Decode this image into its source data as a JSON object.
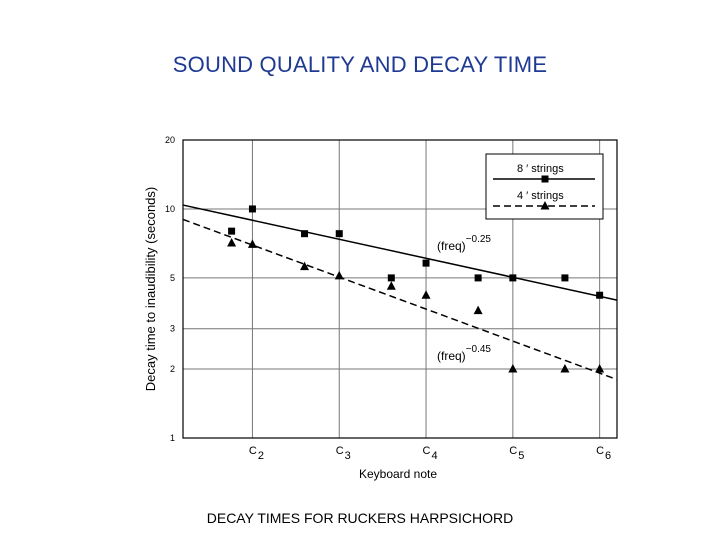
{
  "slide": {
    "title": "SOUND QUALITY AND DECAY TIME",
    "caption": "DECAY TIMES FOR RUCKERS HARPSICHORD"
  },
  "chart_data": {
    "type": "scatter",
    "title": "",
    "xlabel": "Keyboard note",
    "ylabel": "Decay time to inaudibility (seconds)",
    "yscale": "log",
    "ylim": [
      1,
      20
    ],
    "xlim": [
      0.5,
      13
    ],
    "y_ticks": [
      1,
      2,
      3,
      5,
      10,
      20
    ],
    "y_tick_labels": [
      "1",
      "2",
      "3",
      "5",
      "10",
      "20"
    ],
    "x_ticks": [
      {
        "x": 2.5,
        "note": "C",
        "octave": "2"
      },
      {
        "x": 5,
        "note": "C",
        "octave": "3"
      },
      {
        "x": 7.5,
        "note": "C",
        "octave": "4"
      },
      {
        "x": 10,
        "note": "C",
        "octave": "5"
      },
      {
        "x": 12.5,
        "note": "C",
        "octave": "6"
      }
    ],
    "grid": true,
    "legend_position": "top-right",
    "series": [
      {
        "name": "8 ′ strings",
        "marker": "square",
        "line": "solid",
        "points": [
          {
            "x": 1.9,
            "y": 8.0
          },
          {
            "x": 2.5,
            "y": 10.0
          },
          {
            "x": 4.0,
            "y": 7.8
          },
          {
            "x": 5.0,
            "y": 7.8
          },
          {
            "x": 6.5,
            "y": 5.0
          },
          {
            "x": 7.5,
            "y": 5.8
          },
          {
            "x": 9.0,
            "y": 5.0
          },
          {
            "x": 10.0,
            "y": 5.0
          },
          {
            "x": 11.5,
            "y": 5.0
          },
          {
            "x": 12.5,
            "y": 4.2
          }
        ],
        "fit": {
          "label": "(freq)",
          "exponent": "−0.25",
          "x": [
            0.5,
            13
          ],
          "y": [
            10.4,
            4.0
          ]
        }
      },
      {
        "name": "4 ′ strings",
        "marker": "triangle",
        "line": "dashed",
        "points": [
          {
            "x": 1.9,
            "y": 7.1
          },
          {
            "x": 2.5,
            "y": 7.0
          },
          {
            "x": 4.0,
            "y": 5.6
          },
          {
            "x": 5.0,
            "y": 5.1
          },
          {
            "x": 6.5,
            "y": 4.6
          },
          {
            "x": 7.5,
            "y": 4.2
          },
          {
            "x": 9.0,
            "y": 3.6
          },
          {
            "x": 10.0,
            "y": 2.0
          },
          {
            "x": 11.5,
            "y": 2.0
          },
          {
            "x": 12.5,
            "y": 2.0
          }
        ],
        "fit": {
          "label": "(freq)",
          "exponent": "−0.45",
          "x": [
            0.5,
            13
          ],
          "y": [
            9.0,
            1.8
          ]
        }
      }
    ],
    "colors": {
      "marks": "#000000",
      "grid": "#777777",
      "title": "#1f3a93"
    }
  }
}
